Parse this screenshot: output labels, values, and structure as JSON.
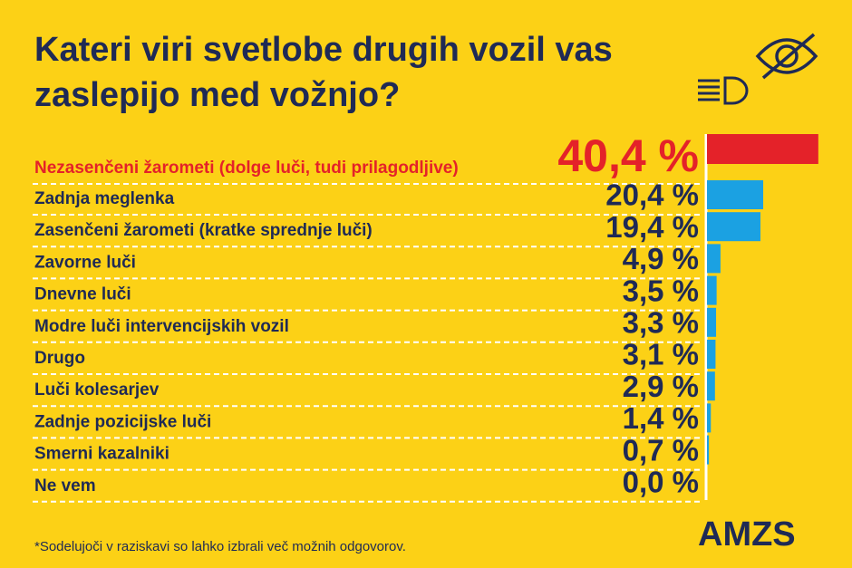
{
  "chart_data": {
    "type": "bar",
    "orientation": "horizontal",
    "title": "Kateri viri svetlobe drugih vozil vas zaslepijo med vožnjo?",
    "categories": [
      "Nezasenčeni žarometi (dolge luči, tudi prilagodljive)",
      "Zadnja meglenka",
      "Zasenčeni žarometi (kratke sprednje luči)",
      "Zavorne luči",
      "Dnevne luči",
      "Modre luči intervencijskih vozil",
      "Drugo",
      "Luči kolesarjev",
      "Zadnje pozicijske luči",
      "Smerni kazalniki",
      "Ne vem"
    ],
    "values": [
      40.4,
      20.4,
      19.4,
      4.9,
      3.5,
      3.3,
      3.1,
      2.9,
      1.4,
      0.7,
      0.0
    ],
    "value_labels": [
      "40,4 %",
      "20,4 %",
      "19,4 %",
      "4,9 %",
      "3,5 %",
      "3,3 %",
      "3,1 %",
      "2,9 %",
      "1,4 %",
      "0,7 %",
      "0,0 %"
    ],
    "colors": [
      "#e42229",
      "#1ba1e2",
      "#1ba1e2",
      "#1ba1e2",
      "#1ba1e2",
      "#1ba1e2",
      "#1ba1e2",
      "#1ba1e2",
      "#1ba1e2",
      "#1ba1e2",
      "#1ba1e2"
    ],
    "footnote": "*Sodelujoči v raziskavi so lahko izbrali več možnih odgovorov.",
    "logo": "AMZS"
  }
}
